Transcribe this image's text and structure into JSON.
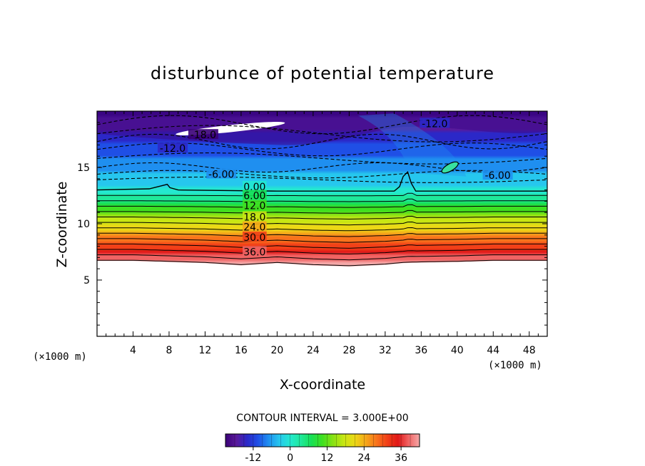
{
  "chart_data": {
    "type": "heatmap",
    "title": "disturbunce of potential temperature",
    "xlabel": "X-coordinate",
    "ylabel": "Z-coordinate",
    "x_unit": "(×1000 m)",
    "y_unit": "(×1000 m)",
    "xlim": [
      0,
      50
    ],
    "ylim": [
      0,
      20
    ],
    "x_ticks": [
      "4",
      "8",
      "12",
      "16",
      "20",
      "24",
      "28",
      "32",
      "36",
      "40",
      "44",
      "48"
    ],
    "y_ticks": [
      "5",
      "10",
      "15"
    ],
    "contour_interval_text": "CONTOUR INTERVAL = 3.000E+00",
    "contour_interval": 3.0,
    "contour_labels": [
      {
        "text": "0.00",
        "value": 0,
        "x": 17.5,
        "z": 13.3
      },
      {
        "text": "6.00",
        "value": 6,
        "x": 17.5,
        "z": 12.5
      },
      {
        "text": "12.0",
        "value": 12,
        "x": 17.5,
        "z": 11.6
      },
      {
        "text": "18.0",
        "value": 18,
        "x": 17.5,
        "z": 10.6
      },
      {
        "text": "24.0",
        "value": 24,
        "x": 17.5,
        "z": 9.7
      },
      {
        "text": "30.0",
        "value": 30,
        "x": 17.5,
        "z": 8.8
      },
      {
        "text": "36.0",
        "value": 36,
        "x": 17.5,
        "z": 7.5
      },
      {
        "text": "-6.00",
        "value": -6,
        "x": 13.8,
        "z": 14.4
      },
      {
        "text": "-6.00",
        "value": -6,
        "x": 44.5,
        "z": 14.3
      },
      {
        "text": "-12.0",
        "value": -12,
        "x": 8.4,
        "z": 16.7
      },
      {
        "text": "-18.0",
        "value": -18,
        "x": 11.8,
        "z": 17.9
      },
      {
        "text": "-12.0",
        "value": -12,
        "x": 37.5,
        "z": 18.9
      }
    ],
    "boundary_lines": [
      {
        "name": "theta=0 contour",
        "points": [
          [
            0,
            13.0
          ],
          [
            5.8,
            13.1
          ],
          [
            7.3,
            13.4
          ],
          [
            7.8,
            13.5
          ],
          [
            8.1,
            13.2
          ],
          [
            9,
            13.0
          ],
          [
            20,
            12.9
          ],
          [
            33,
            12.9
          ],
          [
            33.6,
            13.3
          ],
          [
            34,
            14.2
          ],
          [
            34.5,
            14.6
          ],
          [
            34.9,
            13.6
          ],
          [
            35.4,
            12.9
          ],
          [
            44,
            12.9
          ],
          [
            50,
            12.9
          ]
        ]
      },
      {
        "name": "lower edge of field",
        "points": [
          [
            0,
            6.7
          ],
          [
            4,
            6.7
          ],
          [
            8,
            6.6
          ],
          [
            12,
            6.5
          ],
          [
            16,
            6.3
          ],
          [
            20,
            6.5
          ],
          [
            24,
            6.3
          ],
          [
            28,
            6.2
          ],
          [
            32,
            6.35
          ],
          [
            34,
            6.5
          ],
          [
            36,
            6.55
          ],
          [
            40,
            6.6
          ],
          [
            44,
            6.7
          ],
          [
            50,
            6.7
          ]
        ]
      }
    ],
    "colorbar": {
      "ticks": [
        "-12",
        "0",
        "12",
        "24",
        "36"
      ],
      "vmin": -21,
      "vmax": 42,
      "colors": [
        "#3a0078",
        "#5a1a9a",
        "#2b28c8",
        "#1f4fe6",
        "#1f8ff0",
        "#26c7ee",
        "#24e8d0",
        "#20e89a",
        "#18e055",
        "#40e020",
        "#8ae214",
        "#c8e614",
        "#ecd816",
        "#f5a81a",
        "#f8741c",
        "#f24018",
        "#e01818",
        "#f06464",
        "#f4a8a8"
      ]
    },
    "field_features": [
      {
        "name": "theta=0 bulge",
        "x": 34.5,
        "z": 14.5
      },
      {
        "name": "negative core white patch",
        "x": 14,
        "z": 18.5
      },
      {
        "name": "closed contour cell",
        "x": 39.2,
        "z": 15.0
      }
    ]
  }
}
